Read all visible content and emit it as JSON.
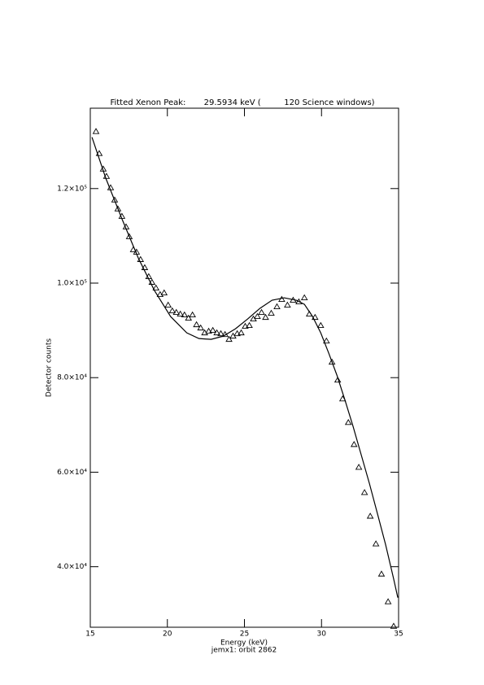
{
  "chart_data": {
    "type": "scatter",
    "title": "Fitted Xenon Peak:       29.5934 keV (         120 Science windows)",
    "xlabel": "Energy (keV)",
    "subtitle": "jemx1: orbit 2862",
    "ylabel": "Detector counts",
    "xlim": [
      15,
      35
    ],
    "xticks": [
      15,
      20,
      25,
      30,
      35
    ],
    "ylim": [
      27200,
      137000
    ],
    "yticks": [
      {
        "value": 40000,
        "label": "4.0×10⁴"
      },
      {
        "value": 60000,
        "label": "6.0×10⁴"
      },
      {
        "value": 80000,
        "label": "8.0×10⁴"
      },
      {
        "value": 100000,
        "label": "1.0×10⁵"
      },
      {
        "value": 120000,
        "label": "1.2×10⁵"
      }
    ],
    "series": [
      {
        "style": "triangle",
        "color": "#000000",
        "x": [
          15.37,
          15.58,
          15.84,
          16.05,
          16.32,
          16.58,
          16.79,
          17.05,
          17.32,
          17.53,
          17.79,
          18.0,
          18.26,
          18.53,
          18.79,
          19.0,
          19.26,
          19.53,
          19.79,
          20.05,
          20.32,
          20.58,
          20.84,
          21.11,
          21.37,
          21.63,
          21.89,
          22.16,
          22.42,
          22.68,
          22.95,
          23.21,
          23.47,
          23.74,
          24.0,
          24.26,
          24.53,
          24.79,
          25.05,
          25.32,
          25.58,
          25.84,
          26.11,
          26.37,
          26.74,
          27.11,
          27.42,
          27.79,
          28.16,
          28.53,
          28.89,
          29.21,
          29.58,
          29.95,
          30.32,
          30.68,
          31.05,
          31.37,
          31.74,
          32.11,
          32.42,
          32.79,
          33.16,
          33.53,
          33.89,
          34.32,
          34.68
        ],
        "values": [
          132070,
          127410,
          124130,
          122580,
          120170,
          117580,
          115690,
          114130,
          111890,
          109820,
          107070,
          106550,
          104990,
          103270,
          101370,
          100170,
          98960,
          97580,
          97930,
          95340,
          94130,
          93790,
          93450,
          93270,
          92580,
          93270,
          91200,
          90510,
          89480,
          89820,
          90000,
          89480,
          89300,
          89130,
          88100,
          88790,
          89300,
          89480,
          90860,
          91030,
          92410,
          92930,
          93790,
          92750,
          93620,
          95000,
          96550,
          95340,
          96380,
          96030,
          96890,
          93450,
          92750,
          91030,
          87750,
          83270,
          79480,
          75510,
          70510,
          65860,
          61030,
          55690,
          50690,
          44830,
          38450,
          32590,
          27410
        ]
      },
      {
        "style": "line",
        "color": "#000000",
        "x": [
          15.11,
          16.0,
          17.05,
          18.11,
          19.16,
          20.21,
          21.26,
          22.05,
          22.84,
          23.63,
          24.42,
          25.21,
          26.0,
          26.79,
          27.58,
          28.37,
          28.89,
          29.42,
          29.95,
          30.47,
          31.0,
          31.53,
          32.05,
          32.58,
          33.11,
          33.63,
          34.16,
          34.68,
          34.95
        ],
        "values": [
          130860,
          122240,
          113620,
          105340,
          98440,
          92930,
          89480,
          88270,
          88100,
          88790,
          90340,
          92410,
          94650,
          96380,
          96890,
          96380,
          95510,
          92930,
          89480,
          85170,
          80510,
          75170,
          69650,
          63620,
          57580,
          51210,
          44650,
          37410,
          33450
        ]
      }
    ]
  }
}
